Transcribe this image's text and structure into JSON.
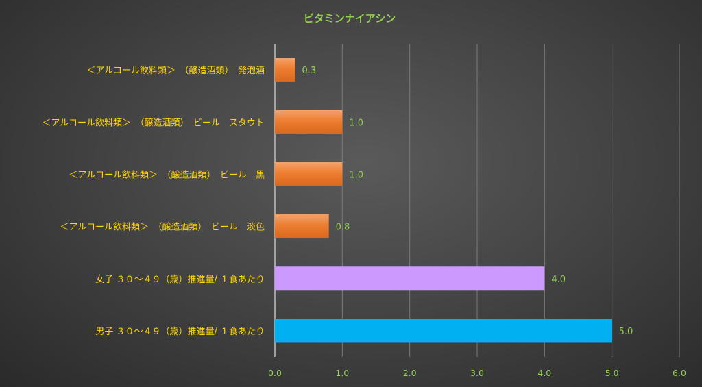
{
  "chart_data": {
    "type": "bar",
    "orientation": "horizontal",
    "title": "ビタミンナイアシン",
    "xlabel": "",
    "ylabel": "",
    "xlim": [
      0,
      6
    ],
    "ticks": [
      "0.0",
      "1.0",
      "2.0",
      "3.0",
      "4.0",
      "5.0",
      "6.0"
    ],
    "grid": true,
    "legend": "none",
    "categories": [
      "＜アルコール飲料類＞　（醸造酒類）　発泡酒",
      "＜アルコール飲料類＞　（醸造酒類）　ビール　スタウト",
      "＜アルコール飲料類＞　（醸造酒類）　ビール　黒",
      "＜アルコール飲料類＞　（醸造酒類）　ビール　淡色",
      "女子 ３０～４９（歳）推進量/ １食あたり",
      "男子 ３０～４９（歳）推進量/ １食あたり"
    ],
    "values": [
      0.3,
      1.0,
      1.0,
      0.8,
      4.0,
      5.0
    ],
    "data_labels": [
      "0.3",
      "1.0",
      "1.0",
      "0.8",
      "4.0",
      "5.0"
    ],
    "bar_colors": [
      "#ed7d31",
      "#ed7d31",
      "#ed7d31",
      "#ed7d31",
      "#cc99ff",
      "#00b0f0"
    ]
  }
}
